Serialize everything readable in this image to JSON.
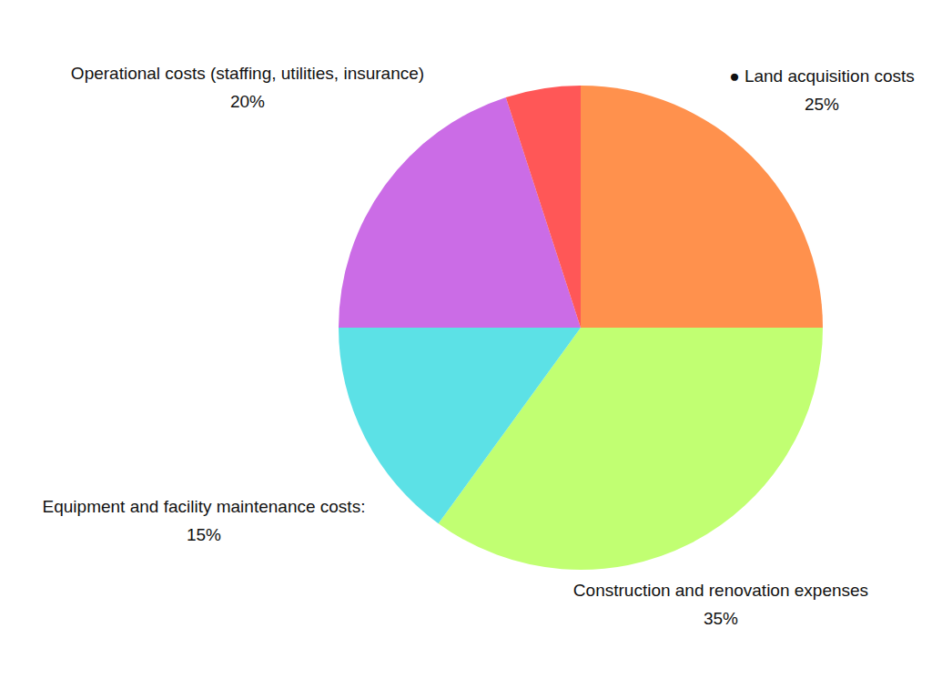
{
  "chart_data": {
    "type": "pie",
    "categories": [
      "● Land acquisition costs",
      "Construction and renovation expenses",
      "Equipment and facility maintenance costs:",
      "Operational costs (staffing, utilities, insurance)",
      null
    ],
    "values": [
      25,
      35,
      15,
      20,
      5
    ],
    "value_labels": [
      "25%",
      "35%",
      "15%",
      "20%",
      null
    ],
    "colors": [
      "#ff914d",
      "#c1ff72",
      "#5ce1e6",
      "#cb6ce6",
      "#ff5757"
    ],
    "data_labels": true
  }
}
